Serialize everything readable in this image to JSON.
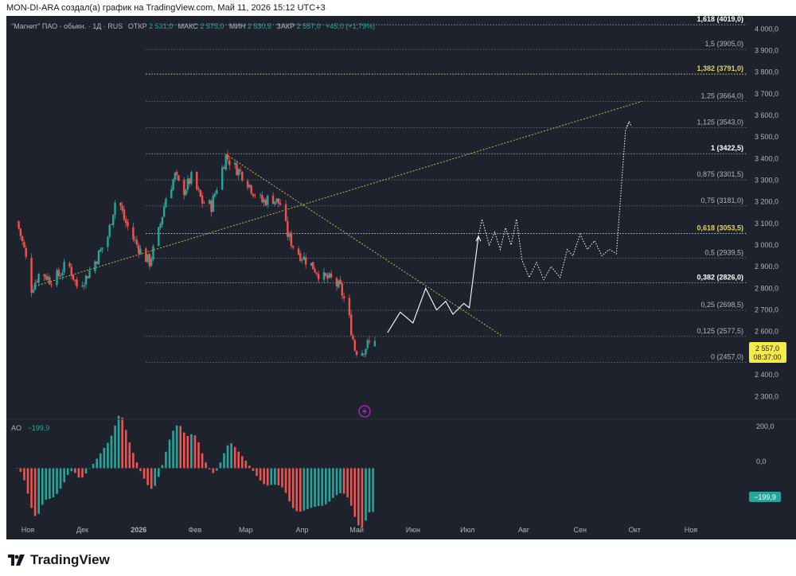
{
  "header": {
    "attribution": "MON-DI-ARA создал(а) график на TradingView.com, Май 11, 2026 15:12 UTC+3"
  },
  "legend": {
    "symbol": "\"Магнит\" ПАО - обыкн. · 1Д · RUS",
    "open_label": "ОТКР",
    "open_value": "2 531,0",
    "high_label": "МАКС",
    "high_value": "2 575,0",
    "low_label": "МИН",
    "low_value": "2 530,5",
    "close_label": "ЗАКР",
    "close_value": "2 557,0",
    "change": "+45,0 (+1,79%)"
  },
  "price_tag": {
    "price": "2 557,0",
    "countdown": "08:37:00"
  },
  "oscillator": {
    "name": "AO",
    "value": "−199,9",
    "axis_labels": [
      "200,0",
      "0,0"
    ],
    "tag": "−199,9"
  },
  "branding": {
    "logo_text": "TradingView",
    "logo_icon": "tradingview-logo-icon"
  },
  "colors": {
    "background": "#1e222d",
    "up": "#26a69a",
    "down": "#ef5350",
    "fib_line": "#787b86",
    "fib_key_line": "#e0d265",
    "trendline": "#c9b84a",
    "projection": "#ffffff",
    "price_tag": "#f5eb44",
    "lightning": "#9c27b0"
  },
  "chart_data": {
    "type": "candlestick",
    "title": "\"Магнит\" ПАО - обыкн. · 1Д · RUS",
    "xlabel": "",
    "ylabel": "",
    "x_ticks": [
      "Ноя",
      "Дек",
      "2026",
      "Фев",
      "Мар",
      "Апр",
      "Май",
      "Июн",
      "Июл",
      "Авг",
      "Сен",
      "Окт",
      "Ноя"
    ],
    "y_ticks": [
      2300,
      2400,
      2500,
      2600,
      2700,
      2800,
      2900,
      3000,
      3100,
      3200,
      3300,
      3400,
      3500,
      3600,
      3700,
      3800,
      3900,
      4000
    ],
    "y_tick_labels": [
      "2 300,0",
      "2 400,0",
      "2 500,0",
      "2 600,0",
      "2 700,0",
      "2 800,0",
      "2 900,0",
      "3 000,0",
      "3 100,0",
      "3 200,0",
      "3 300,0",
      "3 400,0",
      "3 500,0",
      "3 600,0",
      "3 700,0",
      "3 800,0",
      "3 900,0",
      "4 000,0"
    ],
    "ylim": [
      2220,
      4060
    ],
    "grid": false,
    "price_path": [
      [
        "2025-10-26",
        3110
      ],
      [
        "2025-10-30",
        2980
      ],
      [
        "2025-11-03",
        2800
      ],
      [
        "2025-11-08",
        2880
      ],
      [
        "2025-11-13",
        2840
      ],
      [
        "2025-11-18",
        2860
      ],
      [
        "2025-11-23",
        2920
      ],
      [
        "2025-11-28",
        2810
      ],
      [
        "2025-12-03",
        2850
      ],
      [
        "2025-12-09",
        2940
      ],
      [
        "2025-12-15",
        3040
      ],
      [
        "2025-12-20",
        3240
      ],
      [
        "2025-12-24",
        3120
      ],
      [
        "2025-12-29",
        3030
      ],
      [
        "2026-01-03",
        2960
      ],
      [
        "2026-01-07",
        2920
      ],
      [
        "2026-01-12",
        3060
      ],
      [
        "2026-01-16",
        3220
      ],
      [
        "2026-01-21",
        3320
      ],
      [
        "2026-01-25",
        3240
      ],
      [
        "2026-01-30",
        3310
      ],
      [
        "2026-02-05",
        3200
      ],
      [
        "2026-02-10",
        3180
      ],
      [
        "2026-02-14",
        3300
      ],
      [
        "2026-02-18",
        3410
      ],
      [
        "2026-02-23",
        3360
      ],
      [
        "2026-02-28",
        3320
      ],
      [
        "2026-03-05",
        3250
      ],
      [
        "2026-03-10",
        3200
      ],
      [
        "2026-03-15",
        3220
      ],
      [
        "2026-03-20",
        3190
      ],
      [
        "2026-03-24",
        3050
      ],
      [
        "2026-03-28",
        2980
      ],
      [
        "2026-04-02",
        2940
      ],
      [
        "2026-04-07",
        2900
      ],
      [
        "2026-04-12",
        2850
      ],
      [
        "2026-04-17",
        2840
      ],
      [
        "2026-04-22",
        2800
      ],
      [
        "2026-04-26",
        2700
      ],
      [
        "2026-04-30",
        2520
      ],
      [
        "2026-05-03",
        2500
      ],
      [
        "2026-05-07",
        2540
      ],
      [
        "2026-05-11",
        2557
      ]
    ],
    "last_candle": {
      "date": "2026-05-11",
      "open": 2531.0,
      "high": 2575.0,
      "low": 2530.5,
      "close": 2557.0
    },
    "fibonacci": [
      {
        "level": "0",
        "price": "2457,0",
        "value": 2457.0,
        "key": false
      },
      {
        "level": "0,125",
        "price": "2577,5",
        "value": 2577.5,
        "key": false
      },
      {
        "level": "0,25",
        "price": "2698,5",
        "value": 2698.5,
        "key": false
      },
      {
        "level": "0,382",
        "price": "2826,0",
        "value": 2826.0,
        "key": true
      },
      {
        "level": "0,5",
        "price": "2939,5",
        "value": 2939.5,
        "key": false
      },
      {
        "level": "0,618",
        "price": "3053,5",
        "value": 3053.5,
        "key": true,
        "highlight": true
      },
      {
        "level": "0,75",
        "price": "3181,0",
        "value": 3181.0,
        "key": false
      },
      {
        "level": "0,875",
        "price": "3301,5",
        "value": 3301.5,
        "key": false
      },
      {
        "level": "1",
        "price": "3422,5",
        "value": 3422.5,
        "key": true
      },
      {
        "level": "1,125",
        "price": "3543,0",
        "value": 3543.0,
        "key": false
      },
      {
        "level": "1,25",
        "price": "3664,0",
        "value": 3664.0,
        "key": false
      },
      {
        "level": "1,382",
        "price": "3791,0",
        "value": 3791.0,
        "key": true,
        "highlight": true
      },
      {
        "level": "1,5",
        "price": "3905,0",
        "value": 3905.0,
        "key": false
      },
      {
        "level": "1,618",
        "price": "4019,0",
        "value": 4019.0,
        "key": true
      }
    ],
    "trendlines": [
      {
        "name": "rising",
        "from": [
          "2025-11-05",
          2810
        ],
        "to": [
          "2026-10-05",
          3665
        ]
      },
      {
        "name": "falling",
        "from": [
          "2026-02-18",
          3420
        ],
        "to": [
          "2026-07-20",
          2580
        ]
      }
    ],
    "projection_solid": [
      [
        "2026-05-18",
        2595
      ],
      [
        "2026-05-25",
        2690
      ],
      [
        "2026-06-01",
        2640
      ],
      [
        "2026-06-08",
        2800
      ],
      [
        "2026-06-14",
        2700
      ],
      [
        "2026-06-19",
        2740
      ],
      [
        "2026-06-23",
        2680
      ],
      [
        "2026-06-29",
        2730
      ],
      [
        "2026-07-02",
        2710
      ],
      [
        "2026-07-07",
        3040
      ]
    ],
    "projection_dotted": [
      [
        "2026-07-07",
        3040
      ],
      [
        "2026-07-09",
        3120
      ],
      [
        "2026-07-13",
        3000
      ],
      [
        "2026-07-16",
        3060
      ],
      [
        "2026-07-19",
        2980
      ],
      [
        "2026-07-22",
        3080
      ],
      [
        "2026-07-25",
        3000
      ],
      [
        "2026-07-28",
        3120
      ],
      [
        "2026-07-31",
        2930
      ],
      [
        "2026-08-04",
        2850
      ],
      [
        "2026-08-08",
        2920
      ],
      [
        "2026-08-12",
        2840
      ],
      [
        "2026-08-16",
        2900
      ],
      [
        "2026-08-21",
        2850
      ],
      [
        "2026-08-25",
        2980
      ],
      [
        "2026-08-28",
        2950
      ],
      [
        "2026-09-01",
        3050
      ],
      [
        "2026-09-05",
        2980
      ],
      [
        "2026-09-09",
        3020
      ],
      [
        "2026-09-13",
        2950
      ],
      [
        "2026-09-17",
        2980
      ],
      [
        "2026-09-21",
        2960
      ],
      [
        "2026-09-26",
        3530
      ],
      [
        "2026-09-28",
        3570
      ]
    ],
    "ao_ylim": [
      -260,
      220
    ],
    "ao_y_ticks": [
      200,
      0
    ]
  }
}
